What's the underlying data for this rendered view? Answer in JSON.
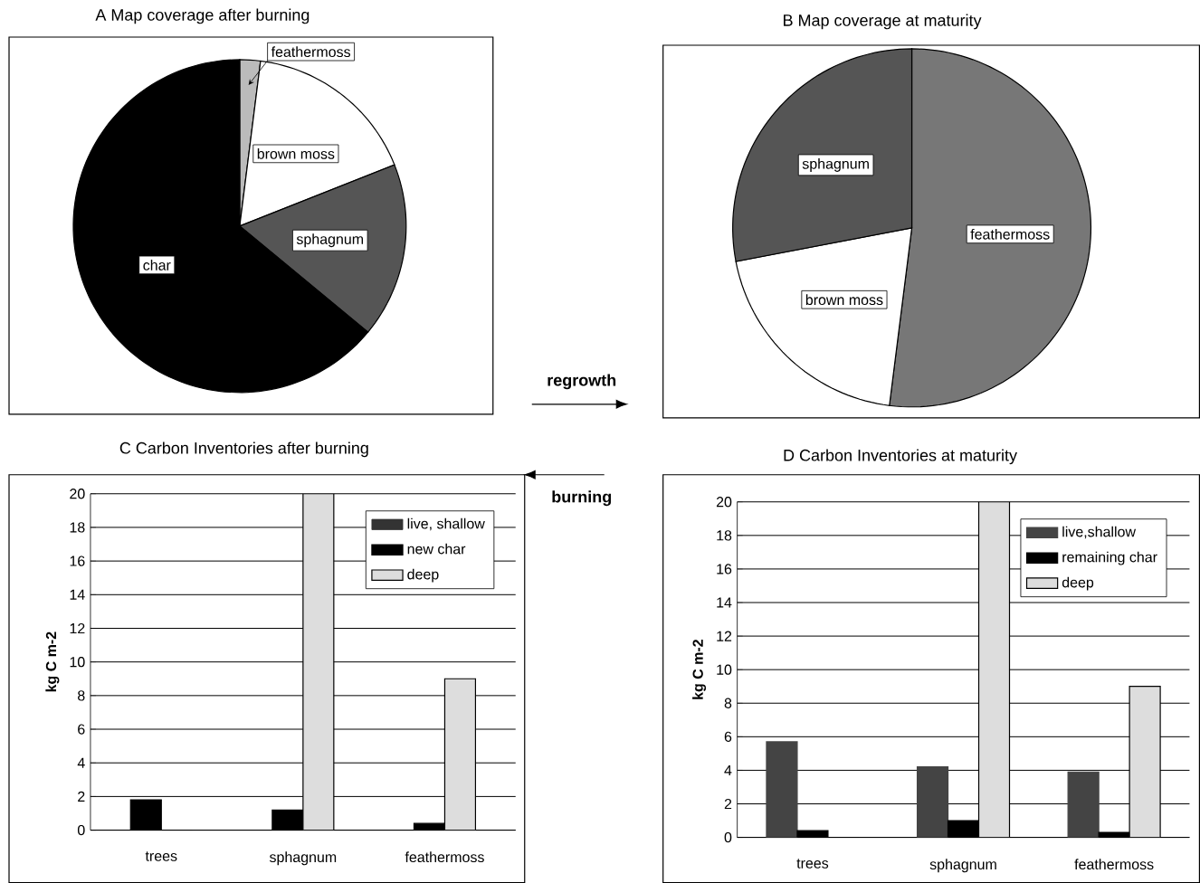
{
  "chart_data": [
    {
      "type": "pie",
      "title": "A Map coverage after burning",
      "categories": [
        "feathermoss",
        "brown moss",
        "sphagnum",
        "char"
      ],
      "values": [
        2,
        17,
        17,
        64
      ],
      "colors": [
        "#bbbbbb",
        "#ffffff",
        "#555555",
        "#000000"
      ],
      "annotations": [
        "regrowth"
      ]
    },
    {
      "type": "pie",
      "title": "B Map coverage at maturity",
      "categories": [
        "feathermoss",
        "brown moss",
        "sphagnum"
      ],
      "values": [
        52,
        20,
        28
      ],
      "colors": [
        "#777777",
        "#ffffff",
        "#555555"
      ]
    },
    {
      "type": "bar",
      "title": "C Carbon Inventories after burning",
      "ylabel": "kg C m-2",
      "categories": [
        "trees",
        "sphagnum",
        "feathermoss"
      ],
      "series": [
        {
          "name": "live, shallow",
          "color": "#333333",
          "values": [
            null,
            null,
            null
          ]
        },
        {
          "name": "new char",
          "color": "#000000",
          "values": [
            1.8,
            1.2,
            0.4
          ]
        },
        {
          "name": "deep",
          "color": "#dddddd",
          "values": [
            0,
            20,
            9
          ]
        }
      ],
      "ylim": [
        0,
        20
      ],
      "yticks": [
        0,
        2,
        4,
        6,
        8,
        10,
        12,
        14,
        16,
        18,
        20
      ],
      "grid": "y",
      "legend": "top right",
      "annotations": [
        "burning"
      ]
    },
    {
      "type": "bar",
      "title": "D Carbon Inventories at maturity",
      "ylabel": "kg C m-2",
      "categories": [
        "trees",
        "sphagnum",
        "feathermoss"
      ],
      "series": [
        {
          "name": "live,shallow",
          "color": "#444444",
          "values": [
            5.7,
            4.2,
            3.9
          ]
        },
        {
          "name": "remaining char",
          "color": "#000000",
          "values": [
            0.4,
            1.0,
            0.3
          ]
        },
        {
          "name": "deep",
          "color": "#dddddd",
          "values": [
            0,
            20,
            9
          ]
        }
      ],
      "ylim": [
        0,
        20
      ],
      "yticks": [
        0,
        2,
        4,
        6,
        8,
        10,
        12,
        14,
        16,
        18,
        20
      ],
      "grid": "y",
      "legend": "top right"
    }
  ]
}
